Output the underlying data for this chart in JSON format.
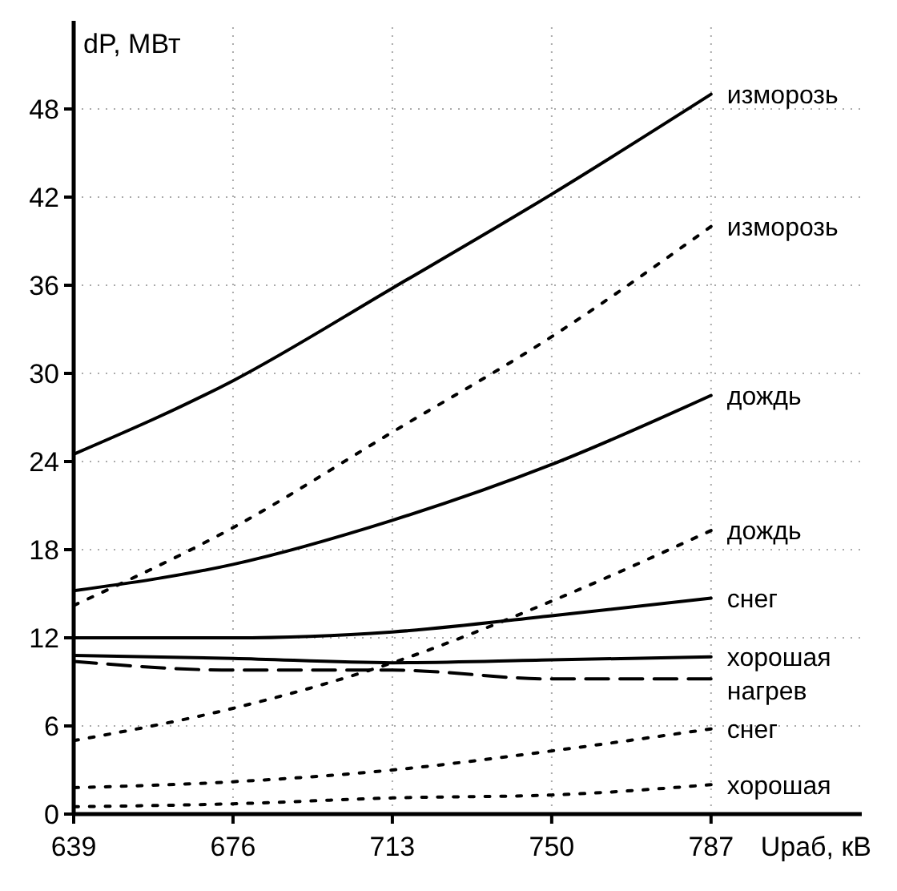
{
  "chart_data": {
    "type": "line",
    "xlabel": "Uраб, кВ",
    "ylabel": "dP, МВт",
    "x": [
      639,
      676,
      713,
      750,
      787
    ],
    "xlim": [
      639,
      822
    ],
    "ylim": [
      0,
      54
    ],
    "xticks": [
      639,
      676,
      713,
      750,
      787
    ],
    "yticks": [
      0,
      6,
      12,
      18,
      24,
      30,
      36,
      42,
      48
    ],
    "grid": true,
    "marker": "none",
    "series": [
      {
        "name": "изморозь",
        "color": "#000000",
        "line_style": "solid",
        "values": [
          24.5,
          29.5,
          35.8,
          42.2,
          49
        ]
      },
      {
        "name": "изморозь",
        "color": "#000000",
        "line_style": "dotted",
        "values": [
          14.2,
          19.5,
          26,
          32.5,
          40
        ]
      },
      {
        "name": "дождь",
        "color": "#000000",
        "line_style": "solid",
        "values": [
          15.2,
          17,
          20,
          23.8,
          28.5
        ]
      },
      {
        "name": "дождь",
        "color": "#000000",
        "line_style": "dotted",
        "values": [
          5,
          7.2,
          10.3,
          14.5,
          19.3
        ]
      },
      {
        "name": "снег",
        "color": "#000000",
        "line_style": "solid",
        "values": [
          12,
          12,
          12.4,
          13.5,
          14.7
        ]
      },
      {
        "name": "хорошая",
        "color": "#000000",
        "line_style": "solid",
        "values": [
          10.8,
          10.6,
          10.3,
          10.5,
          10.7
        ]
      },
      {
        "name": "нагрев",
        "color": "#000000",
        "line_style": "dashed",
        "values": [
          10.4,
          9.8,
          9.8,
          9.2,
          9.2
        ]
      },
      {
        "name": "снег",
        "color": "#000000",
        "line_style": "dotted",
        "values": [
          1.8,
          2.2,
          3,
          4.3,
          5.8
        ]
      },
      {
        "name": "хорошая",
        "color": "#000000",
        "line_style": "dotted",
        "values": [
          0.5,
          0.7,
          1.1,
          1.3,
          2
        ]
      }
    ]
  }
}
